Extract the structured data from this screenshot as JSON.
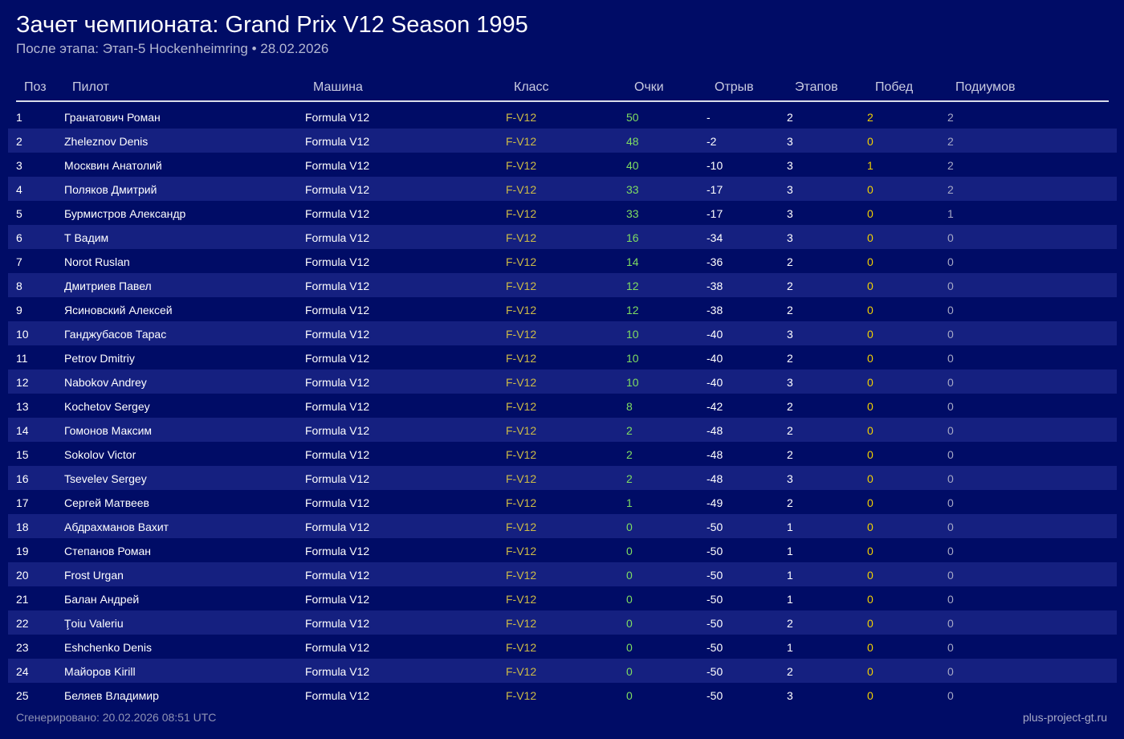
{
  "page": {
    "title": "Зачет чемпионата: Grand Prix V12 Season 1995",
    "subtitle": "После этапа: Этап-5 Hockenheimring • 28.02.2026"
  },
  "table": {
    "columns": {
      "pos": "Поз",
      "pilot": "Пилот",
      "car": "Машина",
      "class": "Класс",
      "points": "Очки",
      "gap": "Отрыв",
      "races": "Этапов",
      "wins": "Побед",
      "podiums": "Подиумов"
    },
    "rows": [
      {
        "pos": "1",
        "pilot": "Гранатович Роман",
        "car": "Formula V12",
        "class": "F-V12",
        "points": "50",
        "gap": "-",
        "races": "2",
        "wins": "2",
        "podiums": "2"
      },
      {
        "pos": "2",
        "pilot": "Zheleznov Denis",
        "car": "Formula V12",
        "class": "F-V12",
        "points": "48",
        "gap": "-2",
        "races": "3",
        "wins": "0",
        "podiums": "2"
      },
      {
        "pos": "3",
        "pilot": "Москвин Анатолий",
        "car": "Formula V12",
        "class": "F-V12",
        "points": "40",
        "gap": "-10",
        "races": "3",
        "wins": "1",
        "podiums": "2"
      },
      {
        "pos": "4",
        "pilot": "Поляков Дмитрий",
        "car": "Formula V12",
        "class": "F-V12",
        "points": "33",
        "gap": "-17",
        "races": "3",
        "wins": "0",
        "podiums": "2"
      },
      {
        "pos": "5",
        "pilot": "Бурмистров Александр",
        "car": "Formula V12",
        "class": "F-V12",
        "points": "33",
        "gap": "-17",
        "races": "3",
        "wins": "0",
        "podiums": "1"
      },
      {
        "pos": "6",
        "pilot": "Т Вадим",
        "car": "Formula V12",
        "class": "F-V12",
        "points": "16",
        "gap": "-34",
        "races": "3",
        "wins": "0",
        "podiums": "0"
      },
      {
        "pos": "7",
        "pilot": "Norot Ruslan",
        "car": "Formula V12",
        "class": "F-V12",
        "points": "14",
        "gap": "-36",
        "races": "2",
        "wins": "0",
        "podiums": "0"
      },
      {
        "pos": "8",
        "pilot": "Дмитриев Павел",
        "car": "Formula V12",
        "class": "F-V12",
        "points": "12",
        "gap": "-38",
        "races": "2",
        "wins": "0",
        "podiums": "0"
      },
      {
        "pos": "9",
        "pilot": "Ясиновский Алексей",
        "car": "Formula V12",
        "class": "F-V12",
        "points": "12",
        "gap": "-38",
        "races": "2",
        "wins": "0",
        "podiums": "0"
      },
      {
        "pos": "10",
        "pilot": "Ганджубасов Тарас",
        "car": "Formula V12",
        "class": "F-V12",
        "points": "10",
        "gap": "-40",
        "races": "3",
        "wins": "0",
        "podiums": "0"
      },
      {
        "pos": "11",
        "pilot": "Petrov Dmitriy",
        "car": "Formula V12",
        "class": "F-V12",
        "points": "10",
        "gap": "-40",
        "races": "2",
        "wins": "0",
        "podiums": "0"
      },
      {
        "pos": "12",
        "pilot": "Nabokov Andrey",
        "car": "Formula V12",
        "class": "F-V12",
        "points": "10",
        "gap": "-40",
        "races": "3",
        "wins": "0",
        "podiums": "0"
      },
      {
        "pos": "13",
        "pilot": "Kochetov Sergey",
        "car": "Formula V12",
        "class": "F-V12",
        "points": "8",
        "gap": "-42",
        "races": "2",
        "wins": "0",
        "podiums": "0"
      },
      {
        "pos": "14",
        "pilot": "Гомонов Максим",
        "car": "Formula V12",
        "class": "F-V12",
        "points": "2",
        "gap": "-48",
        "races": "2",
        "wins": "0",
        "podiums": "0"
      },
      {
        "pos": "15",
        "pilot": "Sokolov Victor",
        "car": "Formula V12",
        "class": "F-V12",
        "points": "2",
        "gap": "-48",
        "races": "2",
        "wins": "0",
        "podiums": "0"
      },
      {
        "pos": "16",
        "pilot": "Tsevelev  Sergey",
        "car": "Formula V12",
        "class": "F-V12",
        "points": "2",
        "gap": "-48",
        "races": "3",
        "wins": "0",
        "podiums": "0"
      },
      {
        "pos": "17",
        "pilot": "Сергей Матвеев",
        "car": "Formula V12",
        "class": "F-V12",
        "points": "1",
        "gap": "-49",
        "races": "2",
        "wins": "0",
        "podiums": "0"
      },
      {
        "pos": "18",
        "pilot": "Абдрахманов Вахит",
        "car": "Formula V12",
        "class": "F-V12",
        "points": "0",
        "gap": "-50",
        "races": "1",
        "wins": "0",
        "podiums": "0"
      },
      {
        "pos": "19",
        "pilot": "Степанов Роман",
        "car": "Formula V12",
        "class": "F-V12",
        "points": "0",
        "gap": "-50",
        "races": "1",
        "wins": "0",
        "podiums": "0"
      },
      {
        "pos": "20",
        "pilot": "Frost Urgan",
        "car": "Formula V12",
        "class": "F-V12",
        "points": "0",
        "gap": "-50",
        "races": "1",
        "wins": "0",
        "podiums": "0"
      },
      {
        "pos": "21",
        "pilot": "Балан Андрей",
        "car": "Formula V12",
        "class": "F-V12",
        "points": "0",
        "gap": "-50",
        "races": "1",
        "wins": "0",
        "podiums": "0"
      },
      {
        "pos": "22",
        "pilot": "Ţoiu Valeriu",
        "car": "Formula V12",
        "class": "F-V12",
        "points": "0",
        "gap": "-50",
        "races": "2",
        "wins": "0",
        "podiums": "0"
      },
      {
        "pos": "23",
        "pilot": "Eshchenko Denis",
        "car": "Formula V12",
        "class": "F-V12",
        "points": "0",
        "gap": "-50",
        "races": "1",
        "wins": "0",
        "podiums": "0"
      },
      {
        "pos": "24",
        "pilot": "Майоров Kirill",
        "car": "Formula V12",
        "class": "F-V12",
        "points": "0",
        "gap": "-50",
        "races": "2",
        "wins": "0",
        "podiums": "0"
      },
      {
        "pos": "25",
        "pilot": "Беляев Владимир",
        "car": "Formula V12",
        "class": "F-V12",
        "points": "0",
        "gap": "-50",
        "races": "3",
        "wins": "0",
        "podiums": "0"
      }
    ]
  },
  "footer": {
    "generated": "Сгенерировано: 20.02.2026 08:51 UTC",
    "site": "plus-project-gt.ru"
  },
  "colors": {
    "background": "#000c66",
    "row_stripe": "#152080",
    "class": "#cdbb47",
    "points": "#7fdd62",
    "wins": "#f0d000"
  }
}
